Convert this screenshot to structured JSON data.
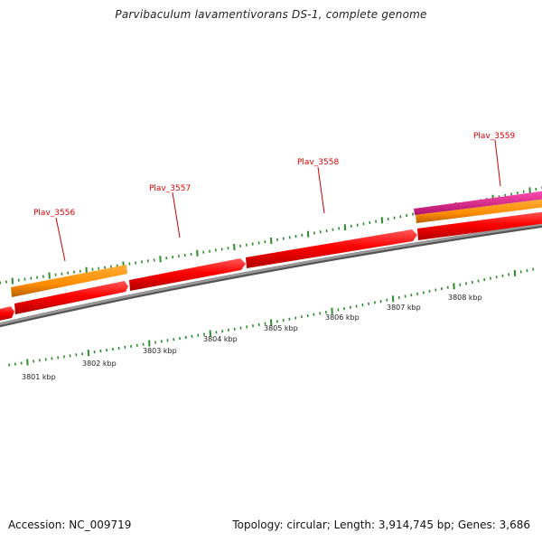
{
  "title": "Parvibaculum lavamentivorans DS-1, complete genome",
  "footer": {
    "accession": "Accession: NC_009719",
    "summary": "Topology: circular; Length: 3,914,745 bp; Genes: 3,686"
  },
  "genes": [
    {
      "name": "Plav_3556"
    },
    {
      "name": "Plav_3557"
    },
    {
      "name": "Plav_3558"
    },
    {
      "name": "Plav_3559"
    }
  ],
  "ruler": {
    "labels": [
      "3801 kbp",
      "3802 kbp",
      "3803 kbp",
      "3804 kbp",
      "3805 kbp",
      "3806 kbp",
      "3807 kbp",
      "3808 kbp"
    ]
  },
  "colors": {
    "cds_forward": "#ff0000",
    "gene_feature": "#ff8c00",
    "pink_feature": "#e0158c",
    "backbone": "#888888",
    "ticks": "#2e8b2e",
    "label": "#dd0000"
  }
}
